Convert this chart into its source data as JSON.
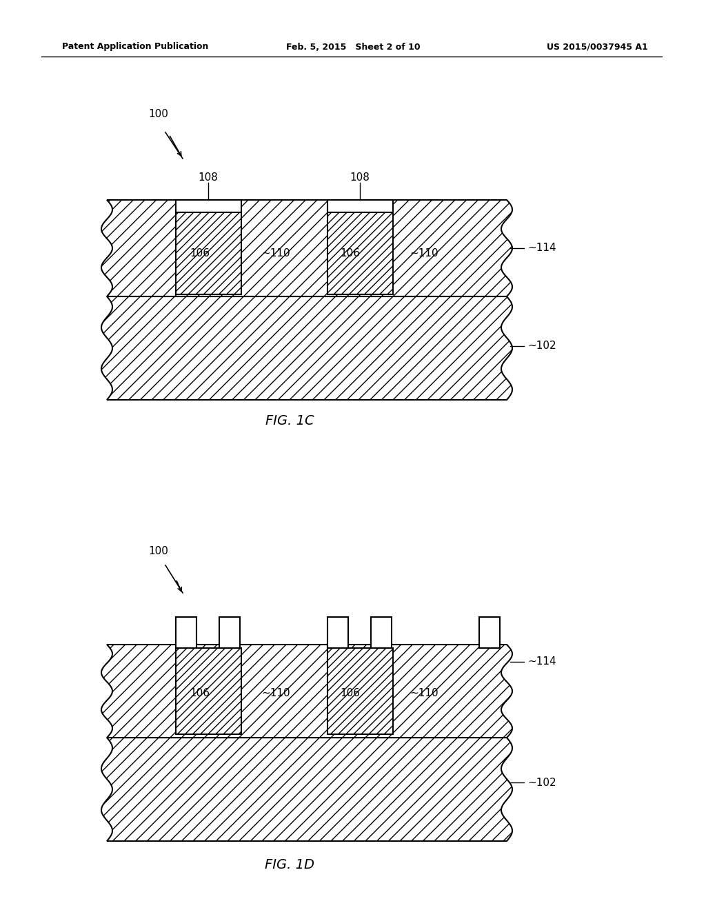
{
  "header_left": "Patent Application Publication",
  "header_mid": "Feb. 5, 2015   Sheet 2 of 10",
  "header_right": "US 2015/0037945 A1",
  "fig1c_label": "FIG. 1C",
  "fig1d_label": "FIG. 1D",
  "ref_100": "100",
  "ref_102": "102",
  "ref_106": "106",
  "ref_108": "108",
  "ref_110": "110",
  "ref_114": "114",
  "bg_color": "#ffffff",
  "hatch_color": "#000000",
  "line_color": "#000000"
}
